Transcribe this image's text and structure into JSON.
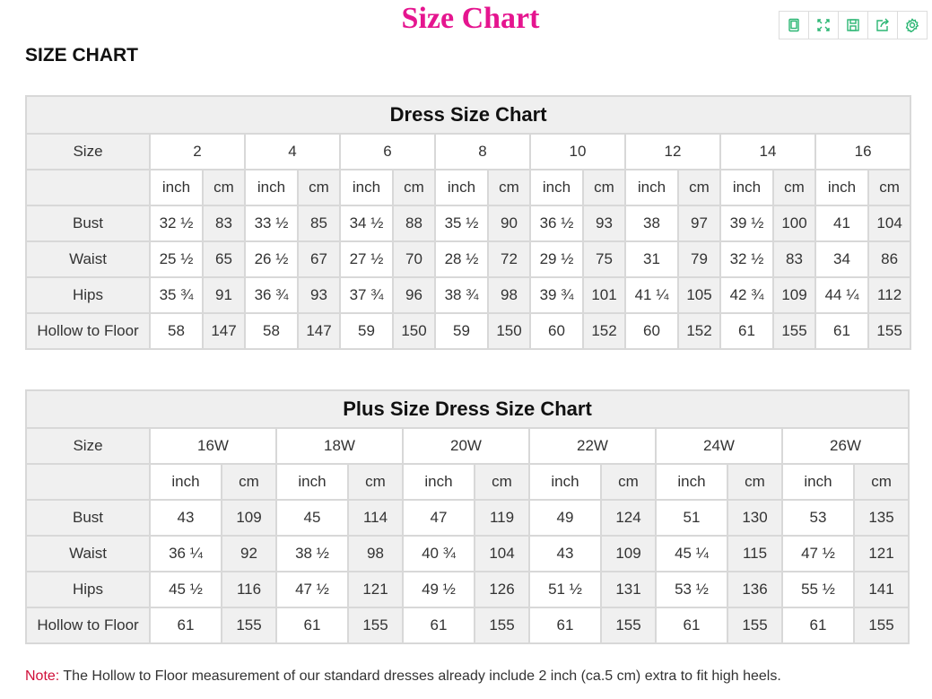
{
  "page_title": "Size Chart",
  "heading": "SIZE CHART",
  "toolbar": {
    "icons": [
      "tablet-icon",
      "fullscreen-icon",
      "save-icon",
      "share-icon",
      "settings-icon"
    ],
    "color": "#2bb673"
  },
  "title_color": "#e5158f",
  "units": [
    "inch",
    "cm"
  ],
  "size_label": "Size",
  "dress": {
    "title": "Dress Size Chart",
    "sizes": [
      "2",
      "4",
      "6",
      "8",
      "10",
      "12",
      "14",
      "16"
    ],
    "rows": [
      {
        "label": "Bust",
        "values": [
          "32 ½",
          "83",
          "33 ½",
          "85",
          "34 ½",
          "88",
          "35 ½",
          "90",
          "36 ½",
          "93",
          "38",
          "97",
          "39 ½",
          "100",
          "41",
          "104"
        ]
      },
      {
        "label": "Waist",
        "values": [
          "25 ½",
          "65",
          "26 ½",
          "67",
          "27 ½",
          "70",
          "28 ½",
          "72",
          "29 ½",
          "75",
          "31",
          "79",
          "32 ½",
          "83",
          "34",
          "86"
        ]
      },
      {
        "label": "Hips",
        "values": [
          "35 ¾",
          "91",
          "36 ¾",
          "93",
          "37 ¾",
          "96",
          "38 ¾",
          "98",
          "39 ¾",
          "101",
          "41 ¼",
          "105",
          "42 ¾",
          "109",
          "44 ¼",
          "112"
        ]
      },
      {
        "label": "Hollow to Floor",
        "values": [
          "58",
          "147",
          "58",
          "147",
          "59",
          "150",
          "59",
          "150",
          "60",
          "152",
          "60",
          "152",
          "61",
          "155",
          "61",
          "155"
        ]
      }
    ]
  },
  "plus": {
    "title": "Plus Size Dress Size Chart",
    "sizes": [
      "16W",
      "18W",
      "20W",
      "22W",
      "24W",
      "26W"
    ],
    "rows": [
      {
        "label": "Bust",
        "values": [
          "43",
          "109",
          "45",
          "114",
          "47",
          "119",
          "49",
          "124",
          "51",
          "130",
          "53",
          "135"
        ]
      },
      {
        "label": "Waist",
        "values": [
          "36 ¼",
          "92",
          "38 ½",
          "98",
          "40 ¾",
          "104",
          "43",
          "109",
          "45 ¼",
          "115",
          "47 ½",
          "121"
        ]
      },
      {
        "label": "Hips",
        "values": [
          "45 ½",
          "116",
          "47 ½",
          "121",
          "49 ½",
          "126",
          "51 ½",
          "131",
          "53 ½",
          "136",
          "55 ½",
          "141"
        ]
      },
      {
        "label": "Hollow to Floor",
        "values": [
          "61",
          "155",
          "61",
          "155",
          "61",
          "155",
          "61",
          "155",
          "61",
          "155",
          "61",
          "155"
        ]
      }
    ]
  },
  "note": {
    "label": "Note:",
    "text": " The Hollow to Floor measurement of our standard dresses already include 2 inch (ca.5 cm) extra to fit high heels."
  }
}
